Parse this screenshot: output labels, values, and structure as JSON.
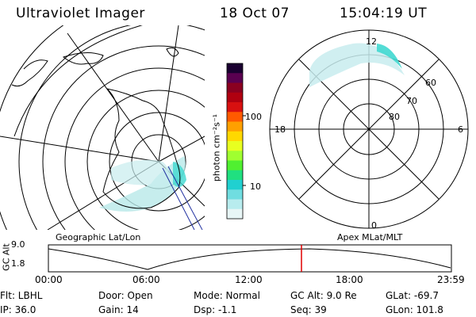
{
  "header": {
    "instrument": "Ultraviolet Imager",
    "date": "18 Oct 07",
    "time": "15:04:19 UT"
  },
  "colorbar": {
    "unit_label": "photon cm⁻²s⁻¹",
    "tick_labels": [
      "100",
      "10"
    ],
    "colors": [
      "#1a0030",
      "#5a0050",
      "#8a0020",
      "#b00010",
      "#d81010",
      "#ff5a00",
      "#ffa000",
      "#ffd800",
      "#e8ff20",
      "#a0ff30",
      "#50f030",
      "#20e080",
      "#20d0d0",
      "#70dde0",
      "#b8ecee",
      "#e8f6f6"
    ]
  },
  "geographic_panel": {
    "label": "Geographic Lat/Lon"
  },
  "magnetic_panel": {
    "label": "Apex MLat/MLT",
    "lat_labels": [
      "60",
      "70",
      "80"
    ],
    "mlt_labels": {
      "top": "12",
      "left": "18",
      "right": "6",
      "bottom": "0"
    }
  },
  "altitude_plot": {
    "ylabel": "GC Alt",
    "ytick_labels": [
      "9.0",
      "1.8"
    ],
    "xtick_labels": [
      "00:00",
      "06:00",
      "12:00",
      "18:00",
      "23:59"
    ],
    "marker_color": "#e00000"
  },
  "status": {
    "flt": "Flt: LBHL",
    "ip": "IP: 36.0",
    "door": "Door: Open",
    "gain": "Gain: 14",
    "mode": "Mode: Normal",
    "dsp": "Dsp:   -1.1",
    "gc_alt": "GC Alt: 9.0 Re",
    "seq": "Seq: 39",
    "glat": "GLat: -69.7",
    "glon": "GLon: 101.8"
  }
}
